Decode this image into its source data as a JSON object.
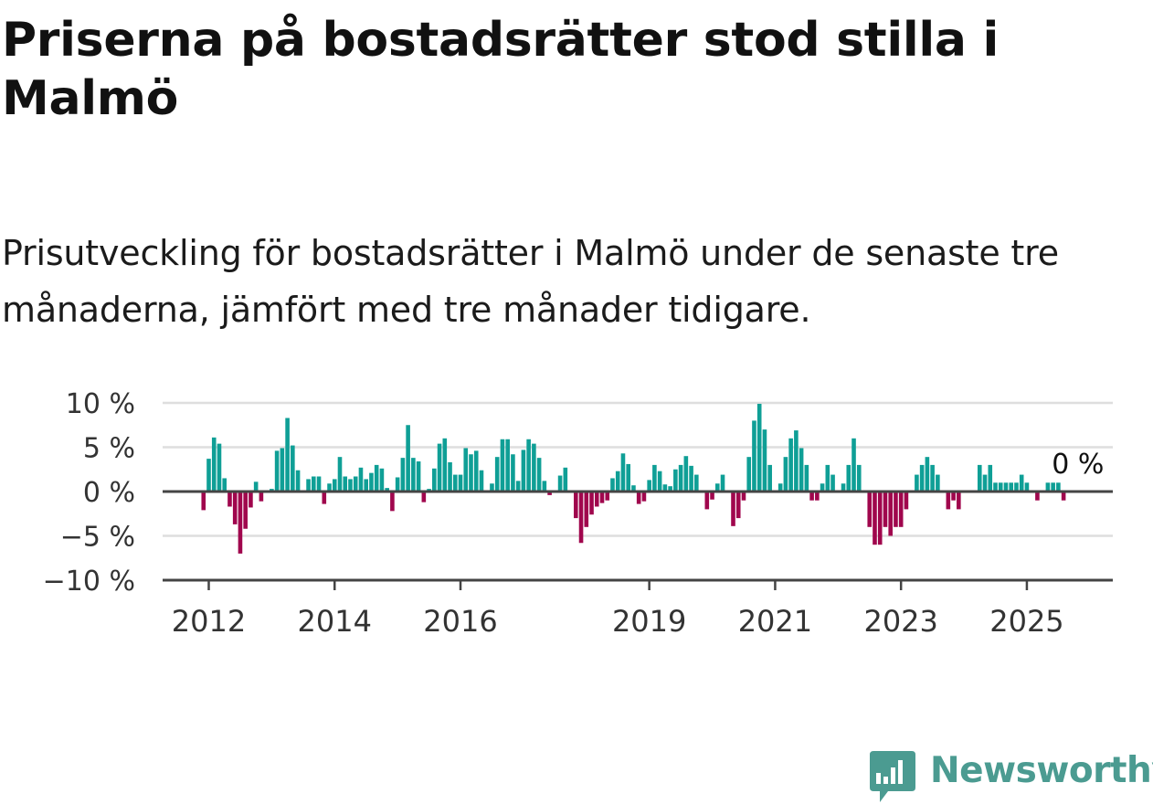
{
  "title": "Priserna på bostadsrätter stod stilla i Malmö",
  "subtitle": "Prisutveckling för bostadsrätter i Malmö under de senaste tre månaderna, jämfört med tre månader tidigare.",
  "brand": {
    "name": "Newsworthy",
    "icon": "newsworthy-logo-icon"
  },
  "colors": {
    "positive": "#0f9f96",
    "negative": "#a0064d",
    "grid": "#dedede",
    "axis": "#444444",
    "brand": "#4b9b91"
  },
  "chart_data": {
    "type": "bar",
    "title": "",
    "xlabel": "",
    "ylabel": "",
    "ylim": [
      -10,
      10
    ],
    "y_ticks": [
      10,
      5,
      0,
      -5,
      -10
    ],
    "y_tick_labels": [
      "10 %",
      "5 %",
      "0 %",
      "−5 %",
      "−10 %"
    ],
    "x_ticks": [
      {
        "label": "2012",
        "year": 2012
      },
      {
        "label": "2014",
        "year": 2014
      },
      {
        "label": "2016",
        "year": 2016
      },
      {
        "label": "2019",
        "year": 2019
      },
      {
        "label": "2021",
        "year": 2021
      },
      {
        "label": "2023",
        "year": 2023
      },
      {
        "label": "2025",
        "year": 2025
      }
    ],
    "grid": true,
    "legend": "none",
    "end_label": "0 %",
    "start": "2011-12",
    "frequency": "monthly",
    "unit": "%",
    "values": [
      -2.1,
      3.7,
      6.1,
      5.4,
      1.5,
      -1.7,
      -3.7,
      -7.0,
      -4.2,
      -1.8,
      1.1,
      -1.1,
      0.1,
      0.3,
      4.6,
      4.9,
      8.3,
      5.2,
      2.4,
      0.1,
      1.4,
      1.7,
      1.7,
      -1.4,
      0.9,
      1.4,
      3.9,
      1.7,
      1.4,
      1.7,
      2.7,
      1.4,
      2.1,
      3.0,
      2.6,
      0.4,
      -2.2,
      1.6,
      3.8,
      7.5,
      3.8,
      3.4,
      -1.2,
      0.3,
      2.6,
      5.4,
      6.0,
      3.3,
      1.9,
      1.9,
      4.9,
      4.2,
      4.6,
      2.4,
      0.1,
      0.9,
      3.9,
      5.9,
      5.9,
      4.2,
      1.2,
      4.7,
      5.9,
      5.4,
      3.8,
      1.2,
      -0.4,
      -0.1,
      1.8,
      2.7,
      0.1,
      -3.0,
      -5.8,
      -4.0,
      -2.6,
      -1.7,
      -1.3,
      -1.0,
      1.5,
      2.3,
      4.3,
      3.1,
      0.7,
      -1.4,
      -1.1,
      1.3,
      3.0,
      2.3,
      0.8,
      0.6,
      2.5,
      3.0,
      4.0,
      2.9,
      1.9,
      -0.1,
      -2.0,
      -0.9,
      0.9,
      1.9,
      0.1,
      -3.9,
      -3.0,
      -1.0,
      3.9,
      8.0,
      9.9,
      7.0,
      3.0,
      -0.1,
      0.9,
      3.9,
      6.0,
      6.9,
      4.9,
      3.0,
      -1.0,
      -1.0,
      0.9,
      3.0,
      1.9,
      0.1,
      0.9,
      3.0,
      6.0,
      3.0,
      0.1,
      -4.0,
      -6.0,
      -6.0,
      -4.0,
      -5.0,
      -4.0,
      -4.0,
      -2.0,
      0.1,
      1.9,
      3.0,
      3.9,
      3.0,
      1.9,
      0.1,
      -2.0,
      -1.0,
      -2.0,
      0.1,
      0.1,
      0.1,
      3.0,
      1.9,
      3.0,
      1.0,
      1.0,
      1.0,
      1.0,
      1.0,
      1.9,
      1.0,
      0.1,
      -1.0,
      0.1,
      1.0,
      1.0,
      1.0,
      -1.0,
      0.0
    ]
  }
}
